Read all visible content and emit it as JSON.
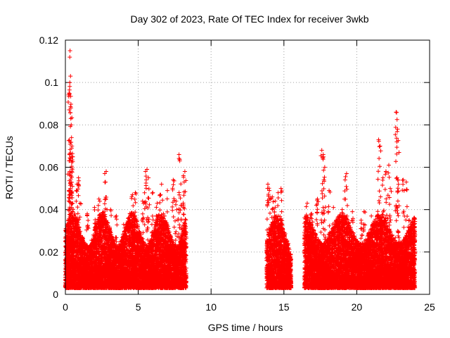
{
  "chart_data": {
    "type": "scatter",
    "title": "Day 302 of 2023, Rate Of TEC Index for receiver 3wkb",
    "xlabel": "GPS time / hours",
    "ylabel": "ROTI / TECUs",
    "xlim": [
      0,
      25
    ],
    "ylim": [
      0,
      0.12
    ],
    "xticks": [
      0,
      5,
      10,
      15,
      20,
      25
    ],
    "xtick_labels": [
      "0",
      "5",
      "10",
      "15",
      "20",
      "25"
    ],
    "yticks": [
      0,
      0.02,
      0.04,
      0.06,
      0.08,
      0.1,
      0.12
    ],
    "ytick_labels": [
      "0",
      "0.02",
      "0.04",
      "0.06",
      "0.08",
      "0.1",
      "0.12"
    ],
    "grid": true,
    "marker": "plus",
    "marker_color": "#ff0000",
    "observation_windows": [
      [
        0.0,
        8.3
      ],
      [
        13.8,
        15.5
      ],
      [
        16.4,
        24.0
      ]
    ],
    "series": [
      {
        "points": [
          [
            0.05,
            0.012
          ],
          [
            0.12,
            0.022
          ],
          [
            0.2,
            0.035
          ],
          [
            0.25,
            0.095
          ],
          [
            0.3,
            0.112
          ],
          [
            0.32,
            0.115
          ],
          [
            0.35,
            0.103
          ],
          [
            0.38,
            0.088
          ],
          [
            0.4,
            0.08
          ],
          [
            0.42,
            0.074
          ],
          [
            0.45,
            0.07
          ],
          [
            0.48,
            0.065
          ],
          [
            0.3,
            0.058
          ],
          [
            0.28,
            0.049
          ],
          [
            0.5,
            0.043
          ],
          [
            0.6,
            0.03
          ],
          [
            0.8,
            0.052
          ],
          [
            0.9,
            0.055
          ],
          [
            1.0,
            0.043
          ],
          [
            1.5,
            0.038
          ],
          [
            2.0,
            0.041
          ],
          [
            2.3,
            0.045
          ],
          [
            2.7,
            0.057
          ],
          [
            2.8,
            0.058
          ],
          [
            2.75,
            0.053
          ],
          [
            3.1,
            0.04
          ],
          [
            3.5,
            0.037
          ],
          [
            4.0,
            0.033
          ],
          [
            4.6,
            0.047
          ],
          [
            4.8,
            0.048
          ],
          [
            5.3,
            0.044
          ],
          [
            5.5,
            0.058
          ],
          [
            5.6,
            0.059
          ],
          [
            5.7,
            0.055
          ],
          [
            6.0,
            0.048
          ],
          [
            6.3,
            0.043
          ],
          [
            6.5,
            0.047
          ],
          [
            6.6,
            0.052
          ],
          [
            7.0,
            0.049
          ],
          [
            7.4,
            0.054
          ],
          [
            7.6,
            0.044
          ],
          [
            7.8,
            0.066
          ],
          [
            7.85,
            0.063
          ],
          [
            8.0,
            0.042
          ],
          [
            8.1,
            0.056
          ],
          [
            8.2,
            0.058
          ],
          [
            8.15,
            0.053
          ],
          [
            13.9,
            0.052
          ],
          [
            14.0,
            0.049
          ],
          [
            14.2,
            0.046
          ],
          [
            14.4,
            0.044
          ],
          [
            14.6,
            0.048
          ],
          [
            14.8,
            0.05
          ],
          [
            15.0,
            0.028
          ],
          [
            15.3,
            0.024
          ],
          [
            16.6,
            0.043
          ],
          [
            16.9,
            0.038
          ],
          [
            17.3,
            0.045
          ],
          [
            17.6,
            0.068
          ],
          [
            17.7,
            0.066
          ],
          [
            17.8,
            0.06
          ],
          [
            18.1,
            0.049
          ],
          [
            18.4,
            0.041
          ],
          [
            19.0,
            0.04
          ],
          [
            19.3,
            0.057
          ],
          [
            19.2,
            0.054
          ],
          [
            19.7,
            0.039
          ],
          [
            20.3,
            0.035
          ],
          [
            20.5,
            0.039
          ],
          [
            21.0,
            0.037
          ],
          [
            21.5,
            0.073
          ],
          [
            21.6,
            0.07
          ],
          [
            21.8,
            0.055
          ],
          [
            22.0,
            0.058
          ],
          [
            22.2,
            0.061
          ],
          [
            22.3,
            0.05
          ],
          [
            22.7,
            0.086
          ],
          [
            22.8,
            0.078
          ],
          [
            22.75,
            0.072
          ],
          [
            22.9,
            0.067
          ],
          [
            23.2,
            0.054
          ],
          [
            23.4,
            0.053
          ],
          [
            23.6,
            0.035
          ],
          [
            23.9,
            0.03
          ]
        ]
      }
    ]
  }
}
